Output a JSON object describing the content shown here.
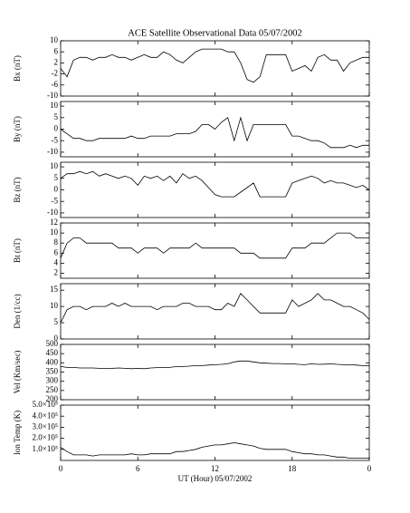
{
  "chart_data": [
    {
      "type": "line",
      "title": "ACE Satellite Observational Data   05/07/2002",
      "ylabel": "Bx (nT)",
      "color": "#000000",
      "ylim": [
        -10,
        10
      ],
      "yticks": [
        -10,
        -6,
        -2,
        2,
        6,
        10
      ],
      "x": [
        0,
        0.5,
        1,
        1.5,
        2,
        2.5,
        3,
        3.5,
        4,
        4.5,
        5,
        5.5,
        6,
        6.5,
        7,
        7.5,
        8,
        8.5,
        9,
        9.5,
        10,
        10.5,
        11,
        11.5,
        12,
        12.5,
        13,
        13.5,
        14,
        14.5,
        15,
        15.5,
        16,
        16.5,
        17,
        17.5,
        18,
        18.5,
        19,
        19.5,
        20,
        20.5,
        21,
        21.5,
        22,
        22.5,
        23,
        23.5,
        24
      ],
      "values": [
        0,
        -3,
        3,
        4,
        4,
        3,
        4,
        4,
        5,
        4,
        4,
        3,
        4,
        5,
        4,
        4,
        6,
        5,
        3,
        2,
        4,
        6,
        7,
        7,
        7,
        7,
        6,
        6,
        2,
        -4,
        -5,
        -3,
        5,
        5,
        5,
        5,
        -1,
        0,
        1,
        -1,
        4,
        5,
        3,
        3,
        -1,
        2,
        3,
        4,
        4
      ]
    },
    {
      "type": "line",
      "ylabel": "By (nT)",
      "color": "#000000",
      "ylim": [
        -12,
        12
      ],
      "yticks": [
        -10,
        -5,
        0,
        5,
        10
      ],
      "x": [
        0,
        0.5,
        1,
        1.5,
        2,
        2.5,
        3,
        3.5,
        4,
        4.5,
        5,
        5.5,
        6,
        6.5,
        7,
        7.5,
        8,
        8.5,
        9,
        9.5,
        10,
        10.5,
        11,
        11.5,
        12,
        12.5,
        13,
        13.5,
        14,
        14.5,
        15,
        15.5,
        16,
        16.5,
        17,
        17.5,
        18,
        18.5,
        19,
        19.5,
        20,
        20.5,
        21,
        21.5,
        22,
        22.5,
        23,
        23.5,
        24
      ],
      "values": [
        0,
        -2,
        -4,
        -4,
        -5,
        -5,
        -4,
        -4,
        -4,
        -4,
        -4,
        -3,
        -4,
        -4,
        -3,
        -3,
        -3,
        -3,
        -2,
        -2,
        -2,
        -1,
        2,
        2,
        0,
        3,
        5,
        -5,
        5,
        -5,
        2,
        2,
        2,
        2,
        2,
        2,
        -3,
        -3,
        -4,
        -5,
        -5,
        -6,
        -8,
        -8,
        -8,
        -7,
        -8,
        -7,
        -7
      ]
    },
    {
      "type": "line",
      "ylabel": "Bz (nT)",
      "color": "#000000",
      "ylim": [
        -12,
        12
      ],
      "yticks": [
        -10,
        -5,
        0,
        5,
        10
      ],
      "x": [
        0,
        0.5,
        1,
        1.5,
        2,
        2.5,
        3,
        3.5,
        4,
        4.5,
        5,
        5.5,
        6,
        6.5,
        7,
        7.5,
        8,
        8.5,
        9,
        9.5,
        10,
        10.5,
        11,
        11.5,
        12,
        12.5,
        13,
        13.5,
        14,
        14.5,
        15,
        15.5,
        16,
        16.5,
        17,
        17.5,
        18,
        18.5,
        19,
        19.5,
        20,
        20.5,
        21,
        21.5,
        22,
        22.5,
        23,
        23.5,
        24
      ],
      "values": [
        5,
        7,
        7,
        8,
        7,
        8,
        6,
        7,
        6,
        5,
        6,
        5,
        2,
        6,
        5,
        6,
        4,
        6,
        3,
        7,
        5,
        6,
        4,
        1,
        -2,
        -3,
        -3,
        -3,
        -1,
        1,
        3,
        -3,
        -3,
        -3,
        -3,
        -3,
        3,
        4,
        5,
        6,
        5,
        3,
        4,
        3,
        3,
        2,
        1,
        2,
        0
      ]
    },
    {
      "type": "line",
      "ylabel": "Bt (nT)",
      "color": "#000000",
      "ylim": [
        1,
        12
      ],
      "yticks": [
        2,
        4,
        6,
        8,
        10,
        12
      ],
      "x": [
        0,
        0.5,
        1,
        1.5,
        2,
        2.5,
        3,
        3.5,
        4,
        4.5,
        5,
        5.5,
        6,
        6.5,
        7,
        7.5,
        8,
        8.5,
        9,
        9.5,
        10,
        10.5,
        11,
        11.5,
        12,
        12.5,
        13,
        13.5,
        14,
        14.5,
        15,
        15.5,
        16,
        16.5,
        17,
        17.5,
        18,
        18.5,
        19,
        19.5,
        20,
        20.5,
        21,
        21.5,
        22,
        22.5,
        23,
        23.5,
        24
      ],
      "values": [
        5,
        8,
        9,
        9,
        8,
        8,
        8,
        8,
        8,
        7,
        7,
        7,
        6,
        7,
        7,
        7,
        6,
        7,
        7,
        7,
        7,
        8,
        7,
        7,
        7,
        7,
        7,
        7,
        6,
        6,
        6,
        5,
        5,
        5,
        5,
        5,
        7,
        7,
        7,
        8,
        8,
        8,
        9,
        10,
        10,
        10,
        9,
        9,
        9
      ]
    },
    {
      "type": "line",
      "ylabel": "Den (1/cc)",
      "color": "#000000",
      "ylim": [
        0,
        17
      ],
      "yticks": [
        0,
        5,
        10,
        15
      ],
      "x": [
        0,
        0.5,
        1,
        1.5,
        2,
        2.5,
        3,
        3.5,
        4,
        4.5,
        5,
        5.5,
        6,
        6.5,
        7,
        7.5,
        8,
        8.5,
        9,
        9.5,
        10,
        10.5,
        11,
        11.5,
        12,
        12.5,
        13,
        13.5,
        14,
        14.5,
        15,
        15.5,
        16,
        16.5,
        17,
        17.5,
        18,
        18.5,
        19,
        19.5,
        20,
        20.5,
        21,
        21.5,
        22,
        22.5,
        23,
        23.5,
        24
      ],
      "values": [
        5,
        9,
        10,
        10,
        9,
        10,
        10,
        10,
        11,
        10,
        11,
        10,
        10,
        10,
        10,
        9,
        10,
        10,
        10,
        11,
        11,
        10,
        10,
        10,
        9,
        9,
        11,
        10,
        14,
        12,
        10,
        8,
        8,
        8,
        8,
        8,
        12,
        10,
        11,
        12,
        14,
        12,
        12,
        11,
        10,
        10,
        9,
        8,
        6
      ]
    },
    {
      "type": "line",
      "ylabel": "Vel (Km/sec)",
      "color": "#000000",
      "ylim": [
        200,
        500
      ],
      "yticks": [
        200,
        250,
        300,
        350,
        400,
        450,
        500
      ],
      "x": [
        0,
        0.5,
        1,
        1.5,
        2,
        2.5,
        3,
        3.5,
        4,
        4.5,
        5,
        5.5,
        6,
        6.5,
        7,
        7.5,
        8,
        8.5,
        9,
        9.5,
        10,
        10.5,
        11,
        11.5,
        12,
        12.5,
        13,
        13.5,
        14,
        14.5,
        15,
        15.5,
        16,
        16.5,
        17,
        17.5,
        18,
        18.5,
        19,
        19.5,
        20,
        20.5,
        21,
        21.5,
        22,
        22.5,
        23,
        23.5,
        24
      ],
      "values": [
        380,
        375,
        375,
        372,
        372,
        372,
        370,
        370,
        370,
        372,
        370,
        368,
        370,
        368,
        372,
        374,
        375,
        375,
        380,
        380,
        382,
        385,
        385,
        388,
        390,
        392,
        395,
        405,
        410,
        410,
        405,
        400,
        398,
        396,
        396,
        395,
        395,
        392,
        390,
        395,
        392,
        393,
        395,
        392,
        390,
        390,
        388,
        385,
        385
      ]
    },
    {
      "type": "line",
      "ylabel": "Ion Temp (K)",
      "xlabel": "UT (Hour)  05/07/2002",
      "color": "#000000",
      "ylim": [
        0,
        500000
      ],
      "yticks": [
        {
          "value": 100000,
          "label": "1.0×10⁵"
        },
        {
          "value": 200000,
          "label": "2.0×10⁵"
        },
        {
          "value": 300000,
          "label": "3.0×10⁵"
        },
        {
          "value": 400000,
          "label": "4.0×10⁵"
        },
        {
          "value": 500000,
          "label": "5.0×10⁵"
        }
      ],
      "xlim": [
        0,
        24
      ],
      "xticks": [
        0,
        6,
        12,
        18,
        {
          "value": 24,
          "label": "0"
        }
      ],
      "x": [
        0,
        0.5,
        1,
        1.5,
        2,
        2.5,
        3,
        3.5,
        4,
        4.5,
        5,
        5.5,
        6,
        6.5,
        7,
        7.5,
        8,
        8.5,
        9,
        9.5,
        10,
        10.5,
        11,
        11.5,
        12,
        12.5,
        13,
        13.5,
        14,
        14.5,
        15,
        15.5,
        16,
        16.5,
        17,
        17.5,
        18,
        18.5,
        19,
        19.5,
        20,
        20.5,
        21,
        21.5,
        22,
        22.5,
        23,
        23.5,
        24
      ],
      "values": [
        120000,
        80000,
        50000,
        50000,
        50000,
        40000,
        50000,
        50000,
        50000,
        50000,
        50000,
        60000,
        50000,
        50000,
        60000,
        60000,
        60000,
        60000,
        80000,
        80000,
        90000,
        100000,
        120000,
        130000,
        140000,
        140000,
        150000,
        160000,
        150000,
        140000,
        130000,
        110000,
        100000,
        100000,
        100000,
        100000,
        80000,
        70000,
        60000,
        60000,
        50000,
        50000,
        40000,
        30000,
        30000,
        20000,
        20000,
        20000,
        20000
      ]
    }
  ]
}
